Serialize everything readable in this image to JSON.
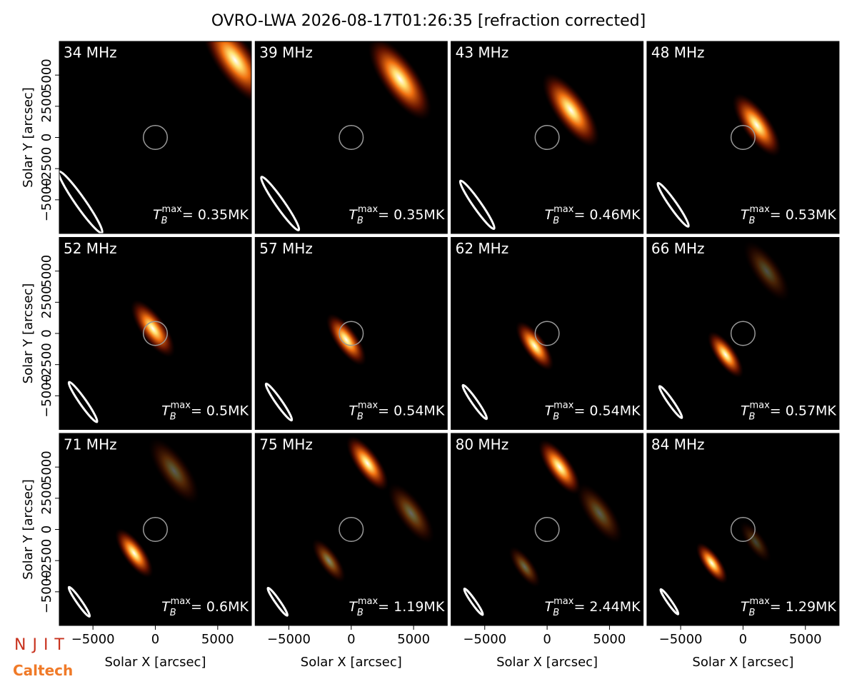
{
  "title": "OVRO-LWA 2026-08-17T01:26:35 [refraction corrected]",
  "logos": [
    "NJIT",
    "Caltech"
  ],
  "tb_symbol": "T",
  "tb_sub": "B",
  "tb_sup": "max",
  "sun_radius": 960,
  "chart_data": [
    {
      "type": "image",
      "title": "34 MHz",
      "annotation": "= 0.35MK",
      "xlim": [
        -7700,
        7700
      ],
      "ylim": [
        -7700,
        7700
      ],
      "ylabel": "Solar Y [arcsec]",
      "yticks": [
        {
          "value": -5000,
          "label": "−5000"
        },
        {
          "value": -2500,
          "label": "−2500"
        },
        0,
        2500,
        5000
      ],
      "sources": [
        {
          "x": 6400,
          "y": 6200,
          "size": 3200,
          "amp": 1
        }
      ],
      "beam": {
        "x": -6000,
        "y": -5200,
        "major": 6000,
        "minor": 800,
        "angle": -55
      }
    },
    {
      "type": "image",
      "title": "39 MHz",
      "annotation": "= 0.35MK",
      "xlim": [
        -7700,
        7700
      ],
      "ylim": [
        -7700,
        7700
      ],
      "sources": [
        {
          "x": 3900,
          "y": 4700,
          "size": 3000,
          "amp": 1
        }
      ],
      "beam": {
        "x": -5700,
        "y": -5300,
        "major": 5200,
        "minor": 700,
        "angle": -55
      }
    },
    {
      "type": "image",
      "title": "43 MHz",
      "annotation": "= 0.46MK",
      "xlim": [
        -7700,
        7700
      ],
      "ylim": [
        -7700,
        7700
      ],
      "sources": [
        {
          "x": 1900,
          "y": 2200,
          "size": 2700,
          "amp": 1
        }
      ],
      "beam": {
        "x": -5600,
        "y": -5400,
        "major": 4700,
        "minor": 640,
        "angle": -55
      }
    },
    {
      "type": "image",
      "title": "48 MHz",
      "annotation": "= 0.53MK",
      "xlim": [
        -7700,
        7700
      ],
      "ylim": [
        -7700,
        7700
      ],
      "sources": [
        {
          "x": 1100,
          "y": 1000,
          "size": 2300,
          "amp": 1
        }
      ],
      "beam": {
        "x": -5600,
        "y": -5400,
        "major": 4250,
        "minor": 580,
        "angle": -55
      }
    },
    {
      "type": "image",
      "title": "52 MHz",
      "annotation": "= 0.5MK",
      "xlim": [
        -7700,
        7700
      ],
      "ylim": [
        -7700,
        7700
      ],
      "ylabel": "Solar Y [arcsec]",
      "yticks": [
        {
          "value": -5000,
          "label": "−5000"
        },
        {
          "value": -2500,
          "label": "−2500"
        },
        0,
        2500,
        5000
      ],
      "sources": [
        {
          "x": -200,
          "y": 400,
          "size": 2100,
          "amp": 1
        }
      ],
      "beam": {
        "x": -5800,
        "y": -5500,
        "major": 3900,
        "minor": 530,
        "angle": -55
      }
    },
    {
      "type": "image",
      "title": "57 MHz",
      "annotation": "= 0.54MK",
      "xlim": [
        -7700,
        7700
      ],
      "ylim": [
        -7700,
        7700
      ],
      "sources": [
        {
          "x": -400,
          "y": -500,
          "size": 1900,
          "amp": 1
        }
      ],
      "beam": {
        "x": -5800,
        "y": -5500,
        "major": 3580,
        "minor": 490,
        "angle": -55
      }
    },
    {
      "type": "image",
      "title": "62 MHz",
      "annotation": "= 0.54MK",
      "xlim": [
        -7700,
        7700
      ],
      "ylim": [
        -7700,
        7700
      ],
      "sources": [
        {
          "x": -1000,
          "y": -1000,
          "size": 1800,
          "amp": 1
        }
      ],
      "beam": {
        "x": -5800,
        "y": -5500,
        "major": 3300,
        "minor": 450,
        "angle": -55
      }
    },
    {
      "type": "image",
      "title": "66 MHz",
      "annotation": "= 0.57MK",
      "xlim": [
        -7700,
        7700
      ],
      "ylim": [
        -7700,
        7700
      ],
      "sources": [
        {
          "x": -1400,
          "y": -1700,
          "size": 1700,
          "amp": 1
        },
        {
          "x": 1900,
          "y": 5000,
          "size": 2200,
          "amp": 0.3
        }
      ],
      "beam": {
        "x": -5800,
        "y": -5500,
        "major": 3100,
        "minor": 420,
        "angle": -55
      }
    },
    {
      "type": "image",
      "title": "71 MHz",
      "annotation": "= 0.6MK",
      "xlim": [
        -7700,
        7700
      ],
      "ylim": [
        -7700,
        7700
      ],
      "xlabel": "Solar X [arcsec]",
      "xticks": [
        {
          "value": -5000,
          "label": "−5000"
        },
        0,
        5000
      ],
      "ylabel": "Solar Y [arcsec]",
      "yticks": [
        {
          "value": -5000,
          "label": "−5000"
        },
        {
          "value": -2500,
          "label": "−2500"
        },
        0,
        2500,
        5000
      ],
      "sources": [
        {
          "x": -1700,
          "y": -1900,
          "size": 1800,
          "amp": 1
        },
        {
          "x": 1500,
          "y": 4700,
          "size": 2400,
          "amp": 0.35
        }
      ],
      "beam": {
        "x": -6100,
        "y": -5800,
        "major": 2870,
        "minor": 390,
        "angle": -55
      }
    },
    {
      "type": "image",
      "title": "75 MHz",
      "annotation": "= 1.19MK",
      "xlim": [
        -7700,
        7700
      ],
      "ylim": [
        -7700,
        7700
      ],
      "xlabel": "Solar X [arcsec]",
      "xticks": [
        {
          "value": -5000,
          "label": "−5000"
        },
        0,
        5000
      ],
      "sources": [
        {
          "x": 1300,
          "y": 5300,
          "size": 2000,
          "amp": 1
        },
        {
          "x": -1800,
          "y": -2500,
          "size": 1600,
          "amp": 0.5
        },
        {
          "x": 4800,
          "y": 1300,
          "size": 2200,
          "amp": 0.4
        }
      ],
      "beam": {
        "x": -5900,
        "y": -5800,
        "major": 2700,
        "minor": 370,
        "angle": -55
      }
    },
    {
      "type": "image",
      "title": "80 MHz",
      "annotation": "= 2.44MK",
      "xlim": [
        -7700,
        7700
      ],
      "ylim": [
        -7700,
        7700
      ],
      "xlabel": "Solar X [arcsec]",
      "xticks": [
        {
          "value": -5000,
          "label": "−5000"
        },
        0,
        5000
      ],
      "sources": [
        {
          "x": 1000,
          "y": 5000,
          "size": 2000,
          "amp": 1
        },
        {
          "x": -1800,
          "y": -3000,
          "size": 1500,
          "amp": 0.4
        },
        {
          "x": 4200,
          "y": 1300,
          "size": 2200,
          "amp": 0.35
        }
      ],
      "beam": {
        "x": -5900,
        "y": -5800,
        "major": 2550,
        "minor": 350,
        "angle": -55
      }
    },
    {
      "type": "image",
      "title": "84 MHz",
      "annotation": "= 1.29MK",
      "xlim": [
        -7700,
        7700
      ],
      "ylim": [
        -7700,
        7700
      ],
      "xlabel": "Solar X [arcsec]",
      "xticks": [
        {
          "value": -5000,
          "label": "−5000"
        },
        0,
        5000
      ],
      "sources": [
        {
          "x": -2500,
          "y": -2700,
          "size": 1500,
          "amp": 1
        },
        {
          "x": 1000,
          "y": -1000,
          "size": 1500,
          "amp": 0.25
        }
      ],
      "beam": {
        "x": -5900,
        "y": -5800,
        "major": 2430,
        "minor": 330,
        "angle": -55
      }
    }
  ]
}
